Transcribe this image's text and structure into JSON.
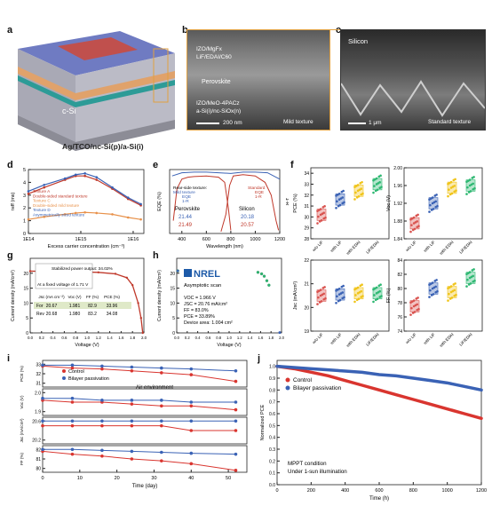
{
  "panels": {
    "a": "a",
    "b": "b",
    "c": "c",
    "d": "d",
    "e": "e",
    "f": "f",
    "g": "g",
    "h": "h",
    "i": "i",
    "j": "j"
  },
  "panel_a": {
    "csi": "c-Si",
    "stack": "Ag/TCO/nc-Si(p)/a-Si(i)"
  },
  "panel_b": {
    "layer1": "IZO/MgFx",
    "layer2": "LiF/EDAI/C60",
    "layer3": "Perovskite",
    "layer4": "IZO/MeO-4PACz",
    "layer5": "a-Si(i)/nc-SiOx(n)",
    "texture": "Mild texture",
    "scale": "200 nm"
  },
  "panel_c": {
    "title": "Silicon",
    "texture": "Standard texture",
    "scale": "1 μm"
  },
  "chart_data": [
    {
      "panel": "d",
      "type": "line",
      "xlabel": "Excess carrier concentration (cm⁻³)",
      "ylabel": "τeff (ms)",
      "xscale": "log",
      "xticks": [
        "1E14",
        "1E15",
        "1E16"
      ],
      "yticks": [
        "0",
        "1",
        "2",
        "3",
        "4",
        "5"
      ],
      "ylim": [
        0,
        5
      ],
      "legend": [
        "Texture A",
        "Double-sided standard texture",
        "Texture C",
        "Double-sided mild texture",
        "Texture D",
        "Asymmetrically sized texture"
      ],
      "series": [
        {
          "name": "Texture A",
          "color": "#c0392b",
          "x": [
            100000000000000.0,
            200000000000000.0,
            500000000000000.0,
            800000000000000.0,
            1200000000000000.0,
            2000000000000000.0,
            4000000000000000.0,
            8000000000000000.0,
            1.4e+16
          ],
          "values": [
            3.1,
            3.6,
            4.2,
            4.5,
            4.5,
            4.2,
            3.5,
            2.7,
            2.2
          ]
        },
        {
          "name": "Texture C",
          "color": "#e8914a",
          "x": [
            100000000000000.0,
            200000000000000.0,
            500000000000000.0,
            800000000000000.0,
            1200000000000000.0,
            2000000000000000.0,
            4000000000000000.0,
            8000000000000000.0,
            1.4e+16
          ],
          "values": [
            1.1,
            1.3,
            1.5,
            1.6,
            1.65,
            1.6,
            1.5,
            1.25,
            1.1
          ]
        },
        {
          "name": "Texture D",
          "color": "#3a62b5",
          "x": [
            100000000000000.0,
            200000000000000.0,
            500000000000000.0,
            800000000000000.0,
            1200000000000000.0,
            2000000000000000.0,
            4000000000000000.0,
            8000000000000000.0,
            1.4e+16
          ],
          "values": [
            3.3,
            3.8,
            4.3,
            4.6,
            4.7,
            4.4,
            3.6,
            2.8,
            2.3
          ]
        }
      ]
    },
    {
      "panel": "e",
      "type": "line",
      "xlabel": "Wavelength (nm)",
      "ylabel": "EQE (%)",
      "ylabel_right": "1-R",
      "xticks": [
        "400",
        "600",
        "800",
        "1000",
        "1200"
      ],
      "xlim": [
        300,
        1200
      ],
      "ylim": [
        0,
        100
      ],
      "legend_left": {
        "title": "Rear-side texture:",
        "sub": "Mild texture",
        "items": [
          "EQE",
          "1-R"
        ]
      },
      "legend_right": {
        "title": "Standard",
        "items": [
          "EQE",
          "1-R"
        ]
      },
      "table": {
        "h1": "Perovskite",
        "h2": "Silicon",
        "row1": [
          "21.44",
          "20.18"
        ],
        "row2": [
          "21.49",
          "20.57"
        ]
      },
      "series": [
        {
          "name": "Perovskite EQE",
          "color": "#c0392b",
          "x": [
            330,
            360,
            400,
            450,
            500,
            600,
            700,
            750,
            780,
            800
          ],
          "values": [
            20,
            70,
            85,
            88,
            89,
            90,
            88,
            80,
            40,
            5
          ]
        },
        {
          "name": "Silicon EQE",
          "color": "#c0392b",
          "x": [
            720,
            760,
            790,
            820,
            900,
            1000,
            1080,
            1130,
            1170,
            1190
          ],
          "values": [
            3,
            30,
            75,
            90,
            92,
            90,
            80,
            60,
            20,
            5
          ]
        },
        {
          "name": "1-R",
          "color": "#3a62b5",
          "x": [
            320,
            400,
            500,
            600,
            700,
            800,
            900,
            1000,
            1100,
            1200
          ],
          "values": [
            90,
            95,
            96,
            96,
            95,
            94,
            96,
            96,
            95,
            85
          ]
        }
      ]
    },
    {
      "panel": "f",
      "type": "scatter",
      "categories": [
        "w/o LiF",
        "with LiF",
        "with EDAI",
        "LiF/EDAI"
      ],
      "colors": [
        "#d9534f",
        "#3a62b5",
        "#f0c419",
        "#2eb872"
      ],
      "subplots": [
        {
          "ylabel": "PCE (%)",
          "yticks": [
            "28",
            "29",
            "30",
            "31",
            "32",
            "33",
            "34"
          ],
          "ylim": [
            28,
            34.5
          ],
          "means": [
            30.2,
            31.6,
            32.4,
            33.0
          ]
        },
        {
          "ylabel": "Voc (V)",
          "yticks": [
            "1.84",
            "1.88",
            "1.92",
            "1.96",
            "2.00"
          ],
          "ylim": [
            1.84,
            2.0
          ],
          "means": [
            1.875,
            1.92,
            1.955,
            1.96
          ]
        },
        {
          "ylabel": "Jsc (mA/cm²)",
          "yticks": [
            "19",
            "20",
            "21",
            "22"
          ],
          "ylim": [
            19,
            22
          ],
          "means": [
            20.5,
            20.55,
            20.6,
            20.6
          ]
        },
        {
          "ylabel": "FF (%)",
          "yticks": [
            "74",
            "76",
            "78",
            "80",
            "82",
            "84"
          ],
          "ylim": [
            74,
            84
          ],
          "means": [
            77.5,
            80,
            79.5,
            81.5
          ]
        }
      ]
    },
    {
      "panel": "g",
      "type": "line",
      "xlabel": "Voltage (V)",
      "ylabel": "Current density (mA/cm²)",
      "xticks": [
        "0.0",
        "0.2",
        "0.4",
        "0.6",
        "0.8",
        "1.0",
        "1.2",
        "1.4",
        "1.6",
        "1.8",
        "2.0"
      ],
      "yticks": [
        "0",
        "5",
        "10",
        "15",
        "20"
      ],
      "ylim": [
        0,
        25
      ],
      "xlim": [
        0,
        2
      ],
      "inset": {
        "title": "Stabilized power output: 34.02%",
        "subtitle": "At a fixed voltage of 1.71 V"
      },
      "table": {
        "headers": [
          "Jsc (mA cm⁻²)",
          "Voc (V)",
          "FF (%)",
          "PCE (%)"
        ],
        "rows": [
          {
            "label": "For",
            "values": [
              "20.67",
              "1.981",
              "82.9",
              "33.96"
            ]
          },
          {
            "label": "Rev",
            "values": [
              "20.68",
              "1.980",
              "83.2",
              "34.08"
            ]
          }
        ]
      },
      "series": [
        {
          "name": "JV",
          "color": "#c0392b",
          "x": [
            0,
            0.4,
            0.8,
            1.2,
            1.5,
            1.7,
            1.8,
            1.9,
            1.95,
            1.98
          ],
          "values": [
            20.7,
            20.6,
            20.5,
            20.3,
            19.8,
            18.5,
            16,
            10,
            5,
            0
          ]
        }
      ]
    },
    {
      "panel": "h",
      "type": "scatter",
      "xlabel": "Voltage (V)",
      "ylabel": "Current density (mA/cm²)",
      "xticks": [
        "0.0",
        "0.2",
        "0.4",
        "0.6",
        "0.8",
        "1.0",
        "1.2",
        "1.4",
        "1.6",
        "1.8",
        "2.0"
      ],
      "yticks": [
        "0",
        "5",
        "10",
        "15",
        "20"
      ],
      "ylim": [
        0,
        25
      ],
      "xlim": [
        0,
        2
      ],
      "logo": "NREL",
      "scan": "Asymptotic scan",
      "params": [
        "VOC = 1.966 V",
        "JSC = 20.76 mA/cm²",
        "FF = 83.0%",
        "PCE = 33.89%",
        "Device area: 1.004 cm²"
      ]
    },
    {
      "panel": "i",
      "type": "line",
      "xlabel": "Time (day)",
      "xticks": [
        "0",
        "10",
        "20",
        "30",
        "40",
        "50"
      ],
      "legend": [
        "Control",
        "Bilayer passivation"
      ],
      "note": "Air environment",
      "subplots": [
        {
          "ylabel": "PCE (%)",
          "yticks": [
            "31",
            "32",
            "33"
          ],
          "control": [
            32.8,
            32.6,
            32.5,
            32.3,
            32.1,
            31.9,
            31.2
          ],
          "bilayer": [
            32.9,
            32.9,
            32.8,
            32.7,
            32.6,
            32.5,
            32.3
          ]
        },
        {
          "ylabel": "Voc (V)",
          "yticks": [
            "1.9",
            "2.0"
          ],
          "control": [
            1.96,
            1.95,
            1.95,
            1.94,
            1.93,
            1.93,
            1.91
          ],
          "bilayer": [
            1.97,
            1.97,
            1.96,
            1.96,
            1.96,
            1.95,
            1.95
          ]
        },
        {
          "ylabel": "Jsc (mA/cm²)",
          "yticks": [
            "20.2",
            "20.6"
          ],
          "control": [
            20.5,
            20.5,
            20.5,
            20.5,
            20.5,
            20.4,
            20.4
          ],
          "bilayer": [
            20.6,
            20.6,
            20.6,
            20.6,
            20.6,
            20.6,
            20.6
          ]
        },
        {
          "ylabel": "FF (%)",
          "yticks": [
            "80",
            "81",
            "82"
          ],
          "control": [
            81.8,
            81.5,
            81.3,
            81.0,
            80.8,
            80.5,
            79.8
          ],
          "bilayer": [
            82.0,
            82.0,
            81.9,
            81.8,
            81.7,
            81.6,
            81.5
          ]
        }
      ],
      "x": [
        0,
        8,
        16,
        24,
        32,
        40,
        52
      ]
    },
    {
      "panel": "j",
      "type": "line",
      "xlabel": "Time (h)",
      "ylabel": "Normalized PCE",
      "xticks": [
        "0",
        "200",
        "400",
        "600",
        "800",
        "1000",
        "1200"
      ],
      "yticks": [
        "0.0",
        "0.1",
        "0.2",
        "0.3",
        "0.4",
        "0.5",
        "0.6",
        "0.7",
        "0.8",
        "0.9",
        "1.0"
      ],
      "xlim": [
        0,
        1200
      ],
      "ylim": [
        0,
        1.05
      ],
      "legend": [
        "Control",
        "Bilayer passivation"
      ],
      "note": "MPPT condition",
      "note2": "Under 1-sun illumination",
      "series": [
        {
          "name": "Control",
          "color": "#d9352f",
          "x": [
            0,
            100,
            200,
            300,
            400,
            500,
            600,
            700,
            800,
            900,
            1000,
            1100,
            1200
          ],
          "values": [
            1.0,
            0.98,
            0.95,
            0.92,
            0.88,
            0.84,
            0.8,
            0.76,
            0.72,
            0.68,
            0.64,
            0.6,
            0.56
          ]
        },
        {
          "name": "Bilayer passivation",
          "color": "#3a62b5",
          "x": [
            0,
            100,
            200,
            300,
            400,
            500,
            600,
            700,
            800,
            900,
            1000,
            1100,
            1200
          ],
          "values": [
            1.0,
            0.99,
            0.98,
            0.97,
            0.96,
            0.95,
            0.93,
            0.92,
            0.9,
            0.88,
            0.86,
            0.83,
            0.8
          ]
        }
      ]
    }
  ]
}
